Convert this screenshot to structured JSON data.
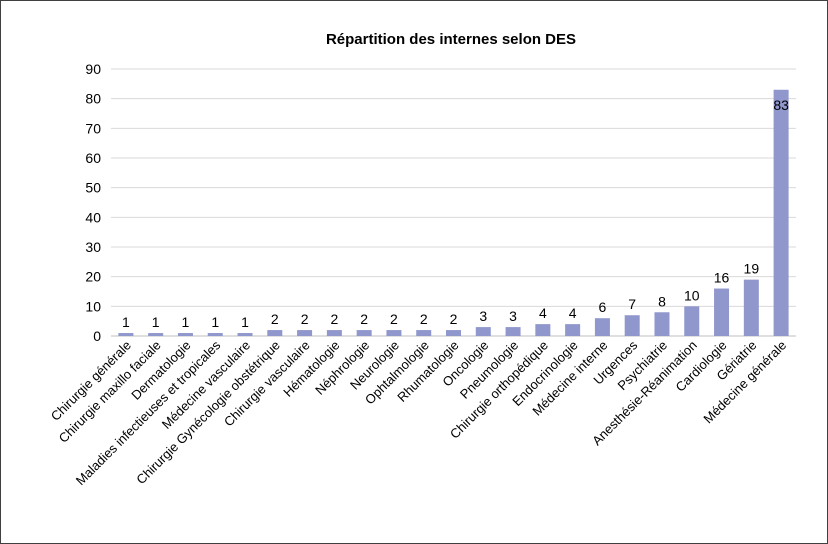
{
  "chart_data": {
    "type": "bar",
    "title": "Répartition des internes selon DES",
    "xlabel": "",
    "ylabel": "",
    "ylim": [
      0,
      90
    ],
    "yticks": [
      0,
      10,
      20,
      30,
      40,
      50,
      60,
      70,
      80,
      90
    ],
    "grid": true,
    "legend": "none",
    "bar_color": "#8f97cc",
    "categories": [
      "Chirurgie générale",
      "Chirurgie maxillo faciale",
      "Dermatologie",
      "Maladies infectieuses et tropicales",
      "Médecine vasculaire",
      "Chirurgie Gynécologie obstétrique",
      "Chirurgie vasculaire",
      "Hématologie",
      "Néphrologie",
      "Neurologie",
      "Ophtalmologie",
      "Rhumatologie",
      "Oncologie",
      "Pneumologie",
      "Chirurgie orthopédique",
      "Endocrinologie",
      "Médecine interne",
      "Urgences",
      "Psychiatrie",
      "Anesthésie-Réanimation",
      "Cardiologie",
      "Gériatrie",
      "Médecine générale"
    ],
    "values": [
      1,
      1,
      1,
      1,
      1,
      2,
      2,
      2,
      2,
      2,
      2,
      2,
      3,
      3,
      4,
      4,
      6,
      7,
      8,
      10,
      16,
      19,
      83
    ]
  }
}
